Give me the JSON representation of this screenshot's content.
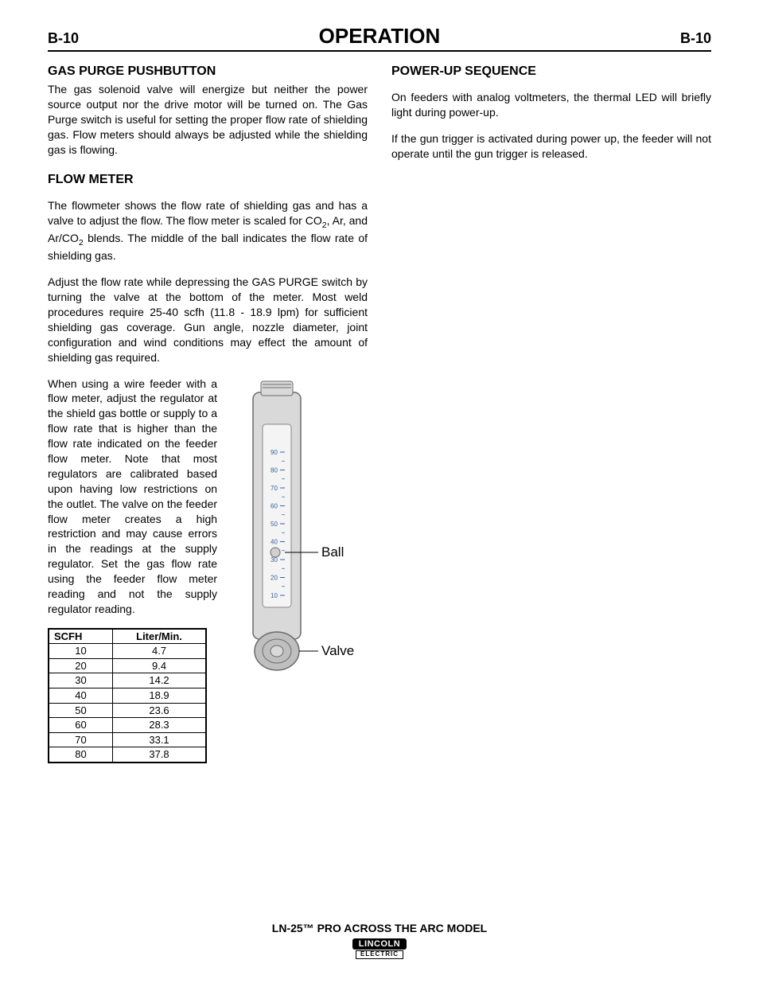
{
  "header": {
    "page_left": "B-10",
    "title": "OPERATION",
    "page_right": "B-10"
  },
  "left_column": {
    "sec1": {
      "heading": "GAS PURGE PUSHBUTTON",
      "p1": "The gas solenoid valve will energize but neither the power source output nor the drive motor will be turned on.  The Gas Purge switch is useful for setting the proper flow rate of shielding gas.  Flow meters should always be adjusted while the shielding gas is flowing."
    },
    "sec2": {
      "heading": "FLOW METER",
      "p1_a": "The flowmeter shows the flow rate of shielding gas and has a valve to adjust the flow.  The flow meter is scaled for  CO",
      "p1_b": ", Ar, and Ar/CO",
      "p1_c": " blends. The middle of the ball indicates the flow rate of shielding gas.",
      "p2": "Adjust the flow rate while depressing the GAS PURGE switch by turning the valve at the bottom of the meter. Most weld procedures require 25-40 scfh (11.8 - 18.9 lpm) for sufficient shielding gas coverage. Gun angle, nozzle diameter, joint configuration and wind conditions may effect the amount of shielding gas required.",
      "p3": "When using a wire feeder with a flow meter, adjust the regulator at the shield gas bottle or supply to a flow rate that is higher than the flow rate indicated on the feeder flow meter. Note that most regulators are calibrated based upon having low restrictions on the outlet. The valve on the feeder flow meter creates a high restriction and may cause errors in the readings at the supply regulator.   Set the gas flow rate using the feeder flow meter reading and not the supply regulator reading."
    }
  },
  "right_column": {
    "sec1": {
      "heading": "POWER-UP SEQUENCE",
      "p1": "On feeders with analog voltmeters, the thermal LED will briefly light during power-up.",
      "p2": "If the gun trigger is activated during power up, the feeder will not operate until the gun trigger is released."
    }
  },
  "table": {
    "columns": [
      "SCFH",
      "Liter/Min."
    ],
    "rows": [
      [
        "10",
        "4.7"
      ],
      [
        "20",
        "9.4"
      ],
      [
        "30",
        "14.2"
      ],
      [
        "40",
        "18.9"
      ],
      [
        "50",
        "23.6"
      ],
      [
        "60",
        "28.3"
      ],
      [
        "70",
        "33.1"
      ],
      [
        "80",
        "37.8"
      ]
    ]
  },
  "diagram": {
    "scale_labels": [
      "90",
      "80",
      "70",
      "60",
      "50",
      "40",
      "30",
      "20",
      "10"
    ],
    "ball_label": "Ball",
    "valve_label": "Valve",
    "colors": {
      "body_fill": "#d9d9d9",
      "body_stroke": "#6b6b6b",
      "tube_fill": "#f4f4f4",
      "tube_stroke": "#888888",
      "valve_fill": "#bfbfbf",
      "ball_fill": "#d0d0d0",
      "scale_text": "#3a5fa0",
      "tick": "#3a5fa0",
      "label_text": "#000000"
    }
  },
  "footer": {
    "model": "LN-25™ PRO ACROSS THE ARC MODEL",
    "logo_top": "LINCOLN",
    "logo_bot": "ELECTRIC"
  }
}
